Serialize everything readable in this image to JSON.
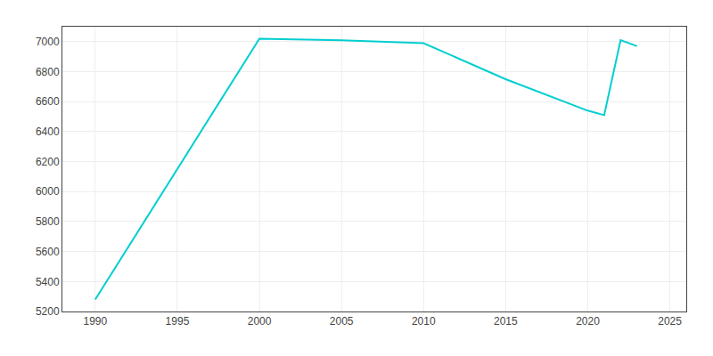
{
  "chart_data": {
    "type": "line",
    "x": [
      1990,
      2000,
      2005,
      2010,
      2015,
      2020,
      2021,
      2022,
      2023
    ],
    "values": [
      5280,
      7020,
      7010,
      6990,
      6750,
      6540,
      6510,
      7010,
      6970
    ],
    "color": "#00CED1",
    "xlim": [
      1988,
      2026
    ],
    "ylim": [
      5200,
      7100
    ],
    "xticks": [
      1990,
      1995,
      2000,
      2005,
      2010,
      2015,
      2020,
      2025
    ],
    "yticks": [
      5200,
      5400,
      5600,
      5800,
      6000,
      6200,
      6400,
      6600,
      6800,
      7000
    ],
    "grid": true
  }
}
